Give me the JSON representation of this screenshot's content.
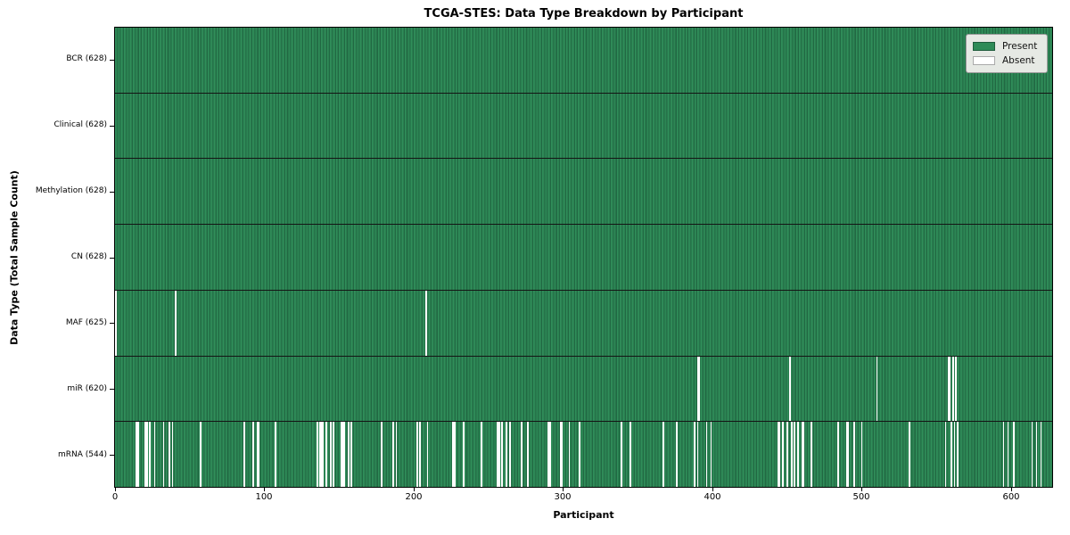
{
  "figure": {
    "title": "TCGA-STES: Data Type Breakdown by Participant",
    "xlabel": "Participant",
    "ylabel": "Data Type (Total Sample Count)"
  },
  "legend": {
    "items": [
      {
        "label": "Present",
        "color": "#2e8b57",
        "border": "#1e5c3c"
      },
      {
        "label": "Absent",
        "color": "#ffffff",
        "border": "#aaaaaa"
      }
    ]
  },
  "colors": {
    "present": "#2e8b57",
    "present_dark_line": "#216943",
    "absent": "#ffffff",
    "row_separator": "#141414",
    "axis": "#000000",
    "legend_bg": "#e6e9e4"
  },
  "chart_data": {
    "type": "heatmap",
    "title": "TCGA-STES: Data Type Breakdown by Participant",
    "xlabel": "Participant",
    "ylabel": "Data Type (Total Sample Count)",
    "legend_position": "upper right",
    "legend_entries": [
      "Present",
      "Absent"
    ],
    "n_participants": 628,
    "xlim": [
      0,
      628
    ],
    "x_ticks": [
      0,
      100,
      200,
      300,
      400,
      500,
      600
    ],
    "value_encoding": {
      "present": "green",
      "absent": "white"
    },
    "rows": [
      {
        "data_type": "BCR",
        "label": "BCR (628)",
        "present_count": 628,
        "absent_count": 0,
        "absent_indices": []
      },
      {
        "data_type": "Clinical",
        "label": "Clinical (628)",
        "present_count": 628,
        "absent_count": 0,
        "absent_indices": []
      },
      {
        "data_type": "Methylation",
        "label": "Methylation (628)",
        "present_count": 628,
        "absent_count": 0,
        "absent_indices": []
      },
      {
        "data_type": "CN",
        "label": "CN (628)",
        "present_count": 628,
        "absent_count": 0,
        "absent_indices": []
      },
      {
        "data_type": "MAF",
        "label": "MAF (625)",
        "present_count": 625,
        "absent_count": 3,
        "absent_indices": [
          0,
          40,
          208
        ]
      },
      {
        "data_type": "miR",
        "label": "miR (620)",
        "present_count": 620,
        "absent_count": 8,
        "absent_indices": [
          390,
          391,
          452,
          510,
          558,
          559,
          561,
          563
        ]
      },
      {
        "data_type": "mRNA",
        "label": "mRNA (544)",
        "present_count": 544,
        "absent_count": 84,
        "absent_indices": [
          14,
          15,
          20,
          21,
          23,
          26,
          32,
          36,
          38,
          57,
          86,
          92,
          95,
          96,
          107,
          135,
          137,
          138,
          139,
          141,
          144,
          146,
          151,
          152,
          153,
          156,
          158,
          178,
          186,
          188,
          202,
          204,
          209,
          226,
          227,
          233,
          245,
          256,
          257,
          259,
          262,
          264,
          272,
          276,
          290,
          291,
          298,
          299,
          304,
          311,
          339,
          345,
          367,
          376,
          388,
          390,
          396,
          399,
          444,
          445,
          447,
          450,
          453,
          455,
          457,
          460,
          461,
          466,
          484,
          490,
          491,
          495,
          500,
          532,
          556,
          560,
          562,
          564,
          595,
          598,
          602,
          614,
          617,
          620
        ]
      }
    ]
  }
}
